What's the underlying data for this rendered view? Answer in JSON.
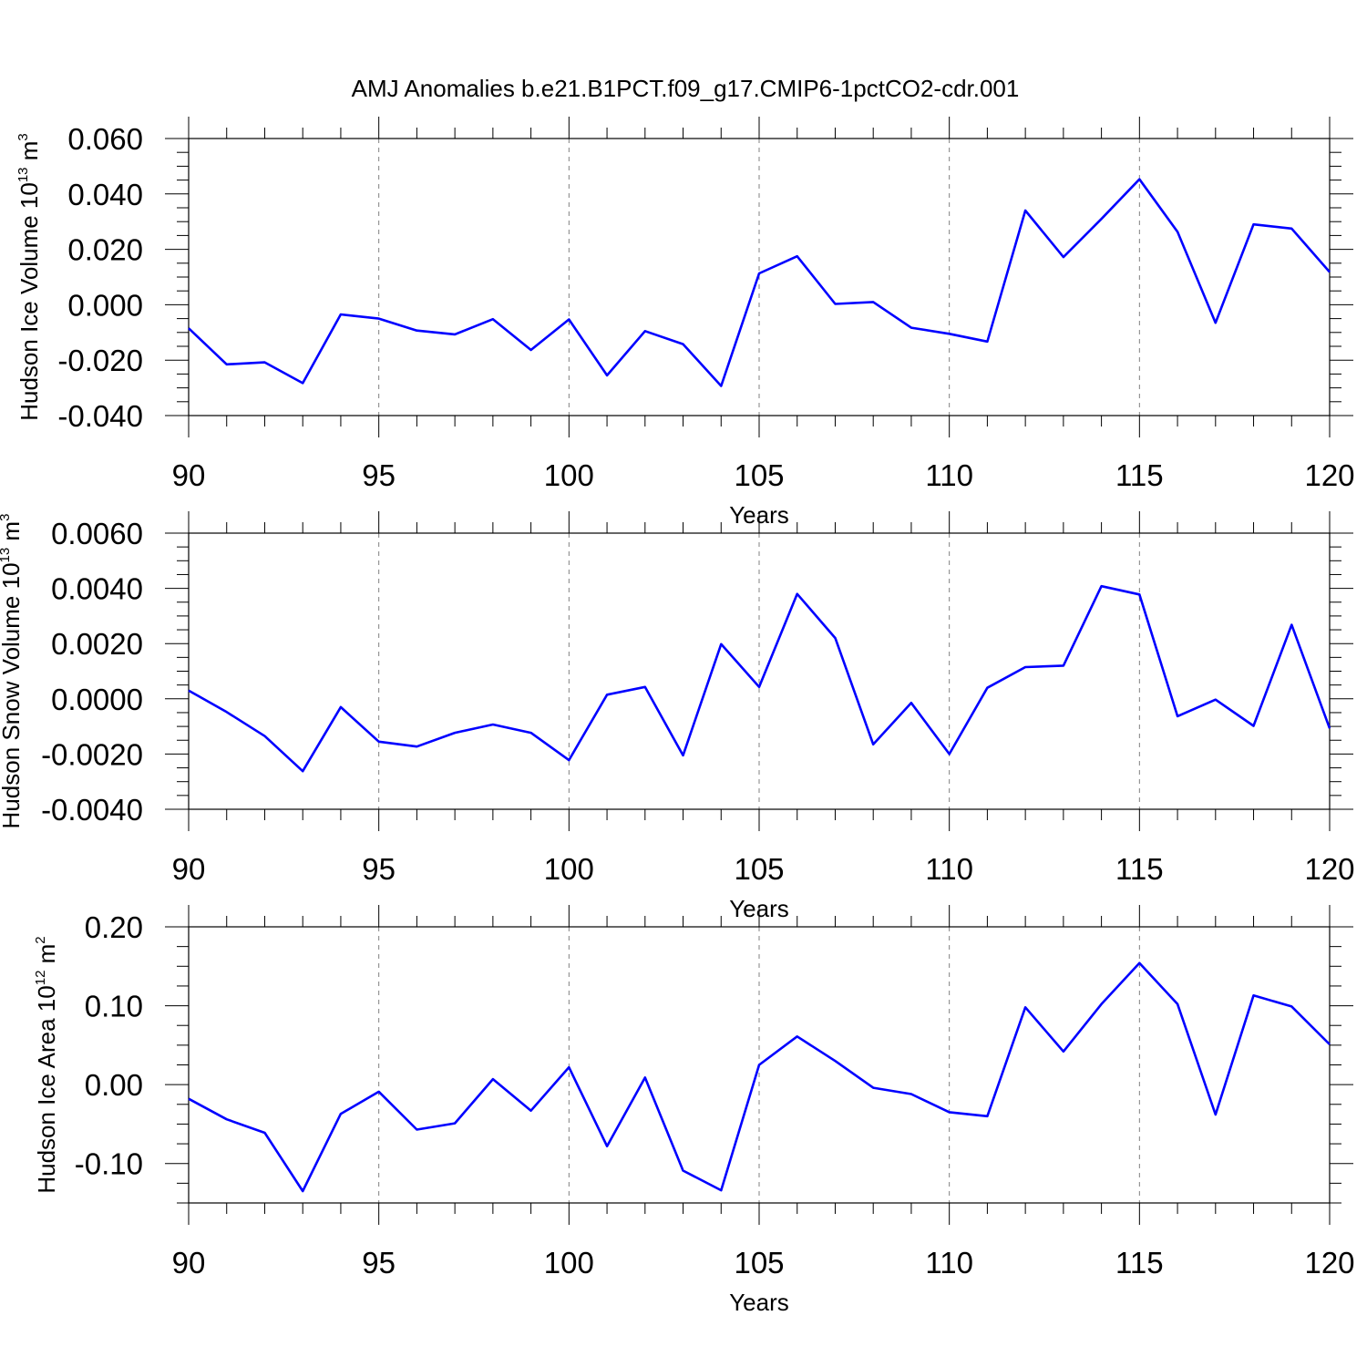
{
  "title": "AMJ Anomalies b.e21.B1PCT.f09_g17.CMIP6-1pctCO2-cdr.001",
  "colors": {
    "line": "#0000ff",
    "axis": "#000000",
    "grid": "#808080"
  },
  "chart_data": [
    {
      "type": "line",
      "ylabel": {
        "text": "Hudson Ice Volume 10",
        "exp": "13",
        "unit": " m",
        "unit_exp": "3"
      },
      "xlabel": "Years",
      "xlim": [
        90,
        120
      ],
      "ylim": [
        -0.04,
        0.06
      ],
      "x_ticks": [
        90,
        95,
        100,
        105,
        110,
        115,
        120
      ],
      "x_tick_labels": [
        "90",
        "95",
        "100",
        "105",
        "110",
        "115",
        "120"
      ],
      "y_ticks": [
        -0.04,
        -0.02,
        0.0,
        0.02,
        0.04,
        0.06
      ],
      "y_tick_labels": [
        "-0.040",
        "-0.020",
        "0.000",
        "0.020",
        "0.040",
        "0.060"
      ],
      "grid": "vertical dashed at major x ticks",
      "x": [
        90,
        91,
        92,
        93,
        94,
        95,
        96,
        97,
        98,
        99,
        100,
        101,
        102,
        103,
        104,
        105,
        106,
        107,
        108,
        109,
        110,
        111,
        112,
        113,
        114,
        115,
        116,
        117,
        118,
        119,
        120
      ],
      "series": [
        {
          "values": [
            -0.0085,
            -0.0215,
            -0.0208,
            -0.0283,
            -0.0035,
            -0.005,
            -0.0093,
            -0.0107,
            -0.0052,
            -0.0163,
            -0.0053,
            -0.0255,
            -0.0095,
            -0.0142,
            -0.0293,
            0.0113,
            0.0175,
            0.0003,
            0.001,
            -0.0083,
            -0.0105,
            -0.0133,
            0.034,
            0.0172,
            0.031,
            0.0453,
            0.0263,
            -0.0065,
            0.029,
            0.0275,
            0.0118
          ]
        }
      ]
    },
    {
      "type": "line",
      "ylabel": {
        "text": "Hudson Snow Volume 10",
        "exp": "13",
        "unit": " m",
        "unit_exp": "3"
      },
      "xlabel": "Years",
      "xlim": [
        90,
        120
      ],
      "ylim": [
        -0.004,
        0.006
      ],
      "x_ticks": [
        90,
        95,
        100,
        105,
        110,
        115,
        120
      ],
      "x_tick_labels": [
        "90",
        "95",
        "100",
        "105",
        "110",
        "115",
        "120"
      ],
      "y_ticks": [
        -0.004,
        -0.002,
        0.0,
        0.002,
        0.004,
        0.006
      ],
      "y_tick_labels": [
        "-0.0040",
        "-0.0020",
        "0.0000",
        "0.0020",
        "0.0040",
        "0.0060"
      ],
      "grid": "vertical dashed at major x ticks",
      "x": [
        90,
        91,
        92,
        93,
        94,
        95,
        96,
        97,
        98,
        99,
        100,
        101,
        102,
        103,
        104,
        105,
        106,
        107,
        108,
        109,
        110,
        111,
        112,
        113,
        114,
        115,
        116,
        117,
        118,
        119,
        120
      ],
      "series": [
        {
          "values": [
            0.0003,
            -0.00048,
            -0.00135,
            -0.00262,
            -0.0003,
            -0.00155,
            -0.00173,
            -0.00123,
            -0.00093,
            -0.00123,
            -0.00222,
            0.00015,
            0.00043,
            -0.00205,
            0.00198,
            0.00043,
            0.0038,
            0.0022,
            -0.00165,
            -0.00015,
            -0.002,
            0.0004,
            0.00115,
            0.0012,
            0.00408,
            0.00378,
            -0.00063,
            -3e-05,
            -0.00098,
            0.00268,
            -0.00107
          ]
        }
      ]
    },
    {
      "type": "line",
      "ylabel": {
        "text": "Hudson Ice Area 10",
        "exp": "12",
        "unit": " m",
        "unit_exp": "2"
      },
      "xlabel": "Years",
      "xlim": [
        90,
        120
      ],
      "ylim": [
        -0.15,
        0.2
      ],
      "x_ticks": [
        90,
        95,
        100,
        105,
        110,
        115,
        120
      ],
      "x_tick_labels": [
        "90",
        "95",
        "100",
        "105",
        "110",
        "115",
        "120"
      ],
      "y_ticks": [
        -0.1,
        0.0,
        0.1,
        0.2
      ],
      "y_tick_labels": [
        "-0.10",
        "0.00",
        "0.10",
        "0.20"
      ],
      "grid": "vertical dashed at major x ticks",
      "x": [
        90,
        91,
        92,
        93,
        94,
        95,
        96,
        97,
        98,
        99,
        100,
        101,
        102,
        103,
        104,
        105,
        106,
        107,
        108,
        109,
        110,
        111,
        112,
        113,
        114,
        115,
        116,
        117,
        118,
        119,
        120
      ],
      "series": [
        {
          "values": [
            -0.018,
            -0.044,
            -0.061,
            -0.135,
            -0.037,
            -0.009,
            -0.057,
            -0.049,
            0.007,
            -0.033,
            0.022,
            -0.078,
            0.009,
            -0.109,
            -0.134,
            0.025,
            0.061,
            0.03,
            -0.004,
            -0.012,
            -0.035,
            -0.04,
            0.098,
            0.042,
            0.102,
            0.154,
            0.102,
            -0.038,
            0.113,
            0.099,
            0.051
          ]
        }
      ]
    }
  ]
}
